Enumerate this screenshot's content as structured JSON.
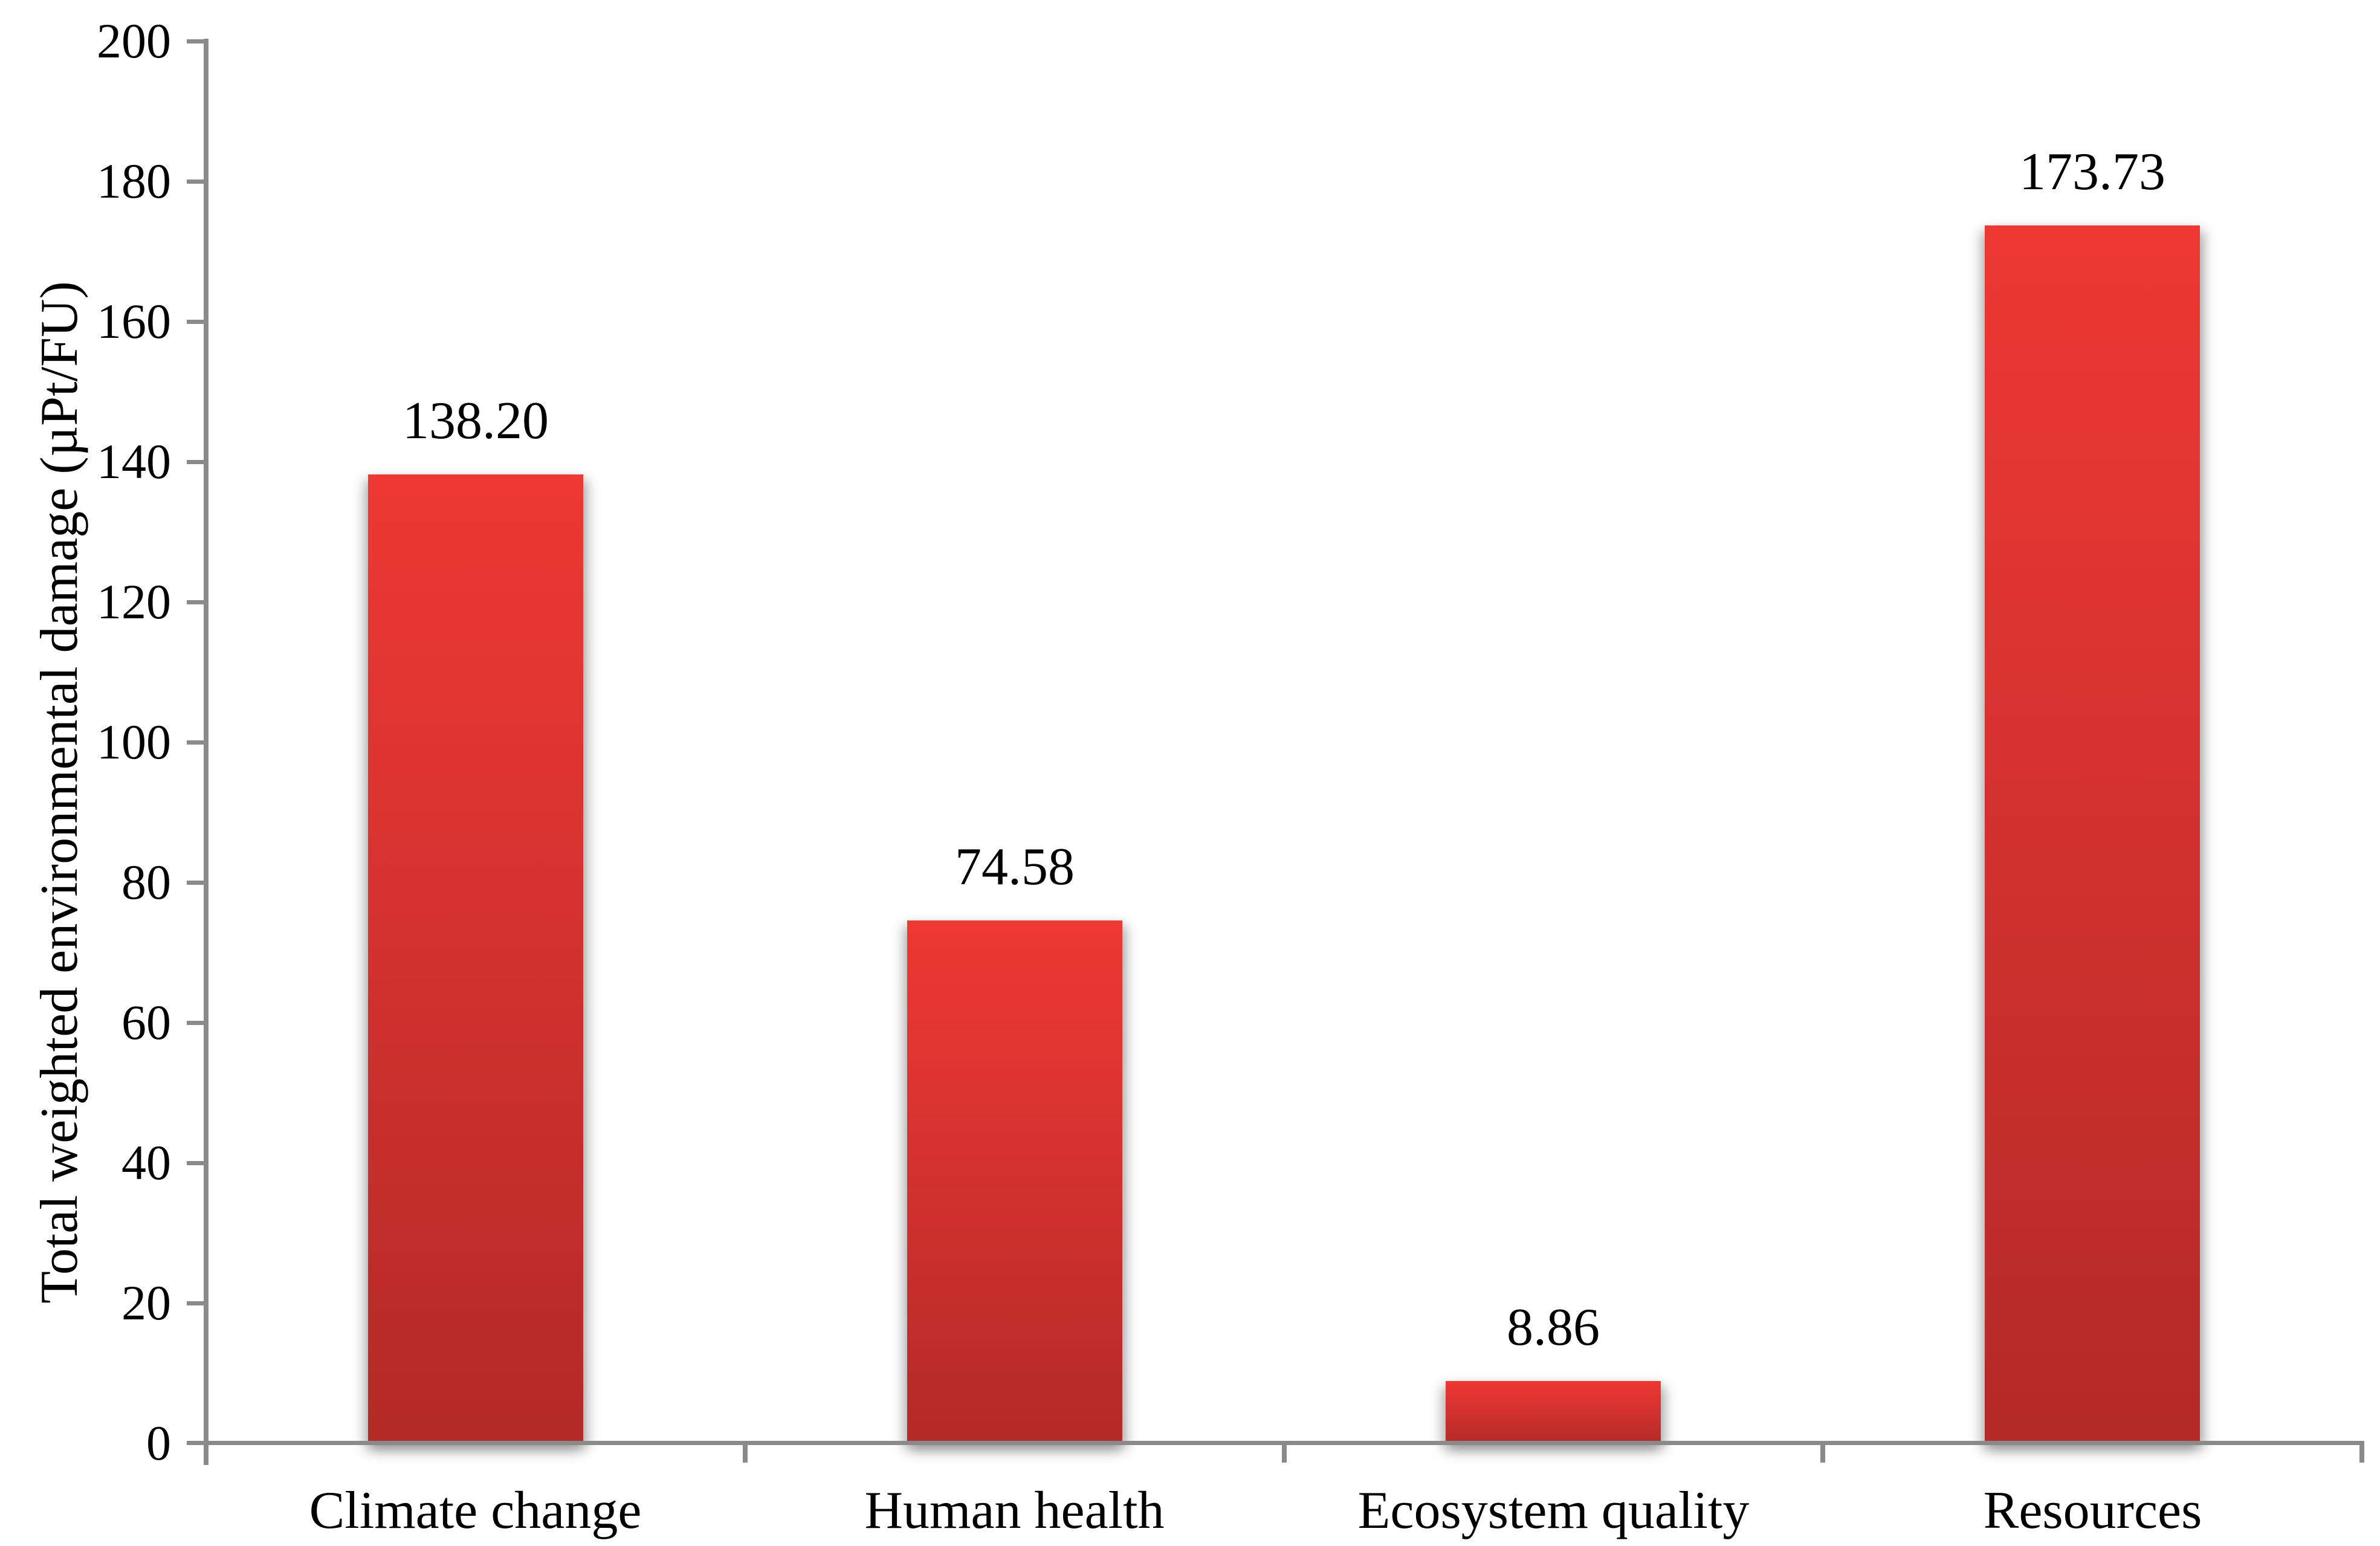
{
  "chart_data": {
    "type": "bar",
    "title": "",
    "categories": [
      "Climate change",
      "Human health",
      "Ecosystem quality",
      "Resources"
    ],
    "values": [
      138.2,
      74.58,
      8.86,
      173.73
    ],
    "data_labels": [
      "138.20",
      "74.58",
      "8.86",
      "173.73"
    ],
    "xlabel": "",
    "ylabel": "Total weighted environmental damage (µPt/FU)",
    "ylim": [
      0,
      200
    ],
    "ytick_step": 20,
    "ytick_labels": [
      "0",
      "20",
      "40",
      "60",
      "80",
      "100",
      "120",
      "140",
      "160",
      "180",
      "200"
    ],
    "grid": false,
    "legend": false,
    "colors": {
      "bar_top": "#EE3833",
      "bar_bottom": "#B32A26",
      "axis": "#8A8A8A",
      "text": "#000000",
      "background": "#FFFFFF"
    }
  }
}
